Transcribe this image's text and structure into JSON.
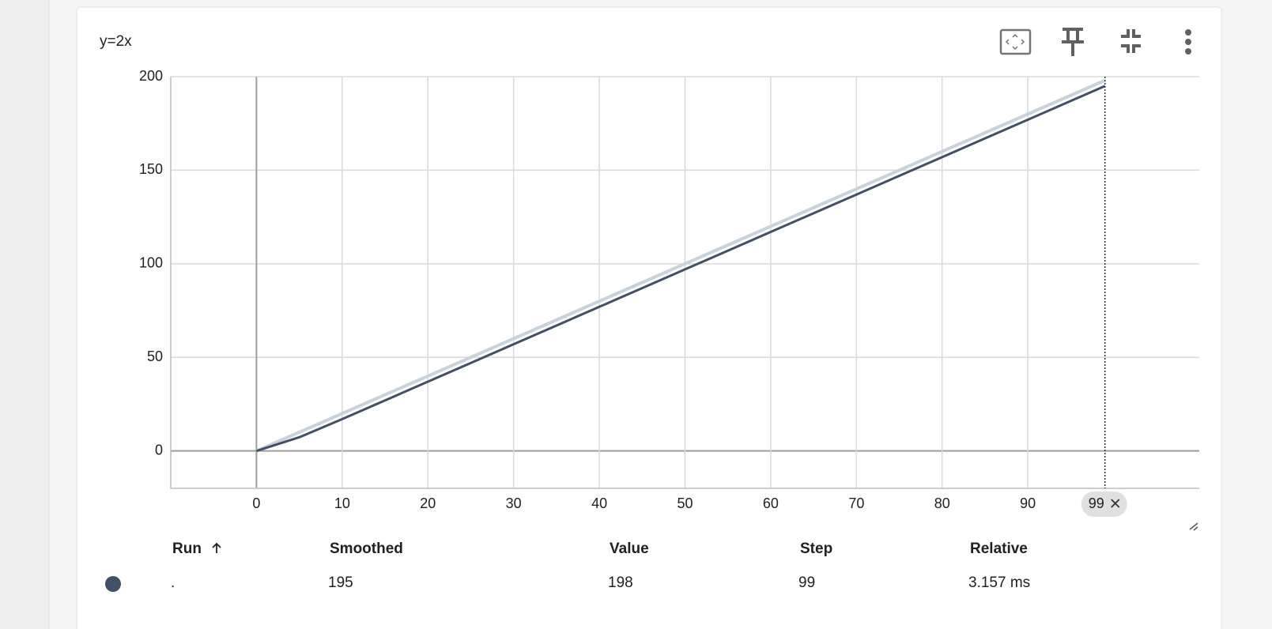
{
  "card": {
    "title": "y=2x"
  },
  "chart_data": {
    "type": "line",
    "x": [
      0,
      5,
      10,
      15,
      20,
      25,
      30,
      35,
      40,
      45,
      50,
      55,
      60,
      65,
      70,
      75,
      80,
      85,
      90,
      95,
      99
    ],
    "series": [
      {
        "color": "#c9d1db",
        "values": [
          0,
          10,
          20,
          30,
          40,
          50,
          60,
          70,
          80,
          90,
          100,
          110,
          120,
          130,
          140,
          150,
          160,
          170,
          180,
          190,
          198
        ]
      },
      {
        "color": "#425066",
        "values": [
          0,
          7.3,
          17,
          27,
          37,
          47,
          57,
          67,
          77,
          87,
          97,
          107,
          117,
          127,
          137,
          147,
          157,
          167,
          177,
          187,
          195
        ]
      }
    ],
    "xlim": [
      -10,
      110
    ],
    "ylim": [
      -20,
      200
    ],
    "xticks": [
      0,
      10,
      20,
      30,
      40,
      50,
      60,
      70,
      80,
      90
    ],
    "yticks": [
      0,
      50,
      100,
      150,
      200
    ],
    "grid": true,
    "hover_step": 99
  },
  "table": {
    "headers": [
      "Run",
      "Smoothed",
      "Value",
      "Step",
      "Relative"
    ],
    "rows": [
      [
        ".",
        "195",
        "198",
        "99",
        "3.157 ms"
      ]
    ]
  }
}
